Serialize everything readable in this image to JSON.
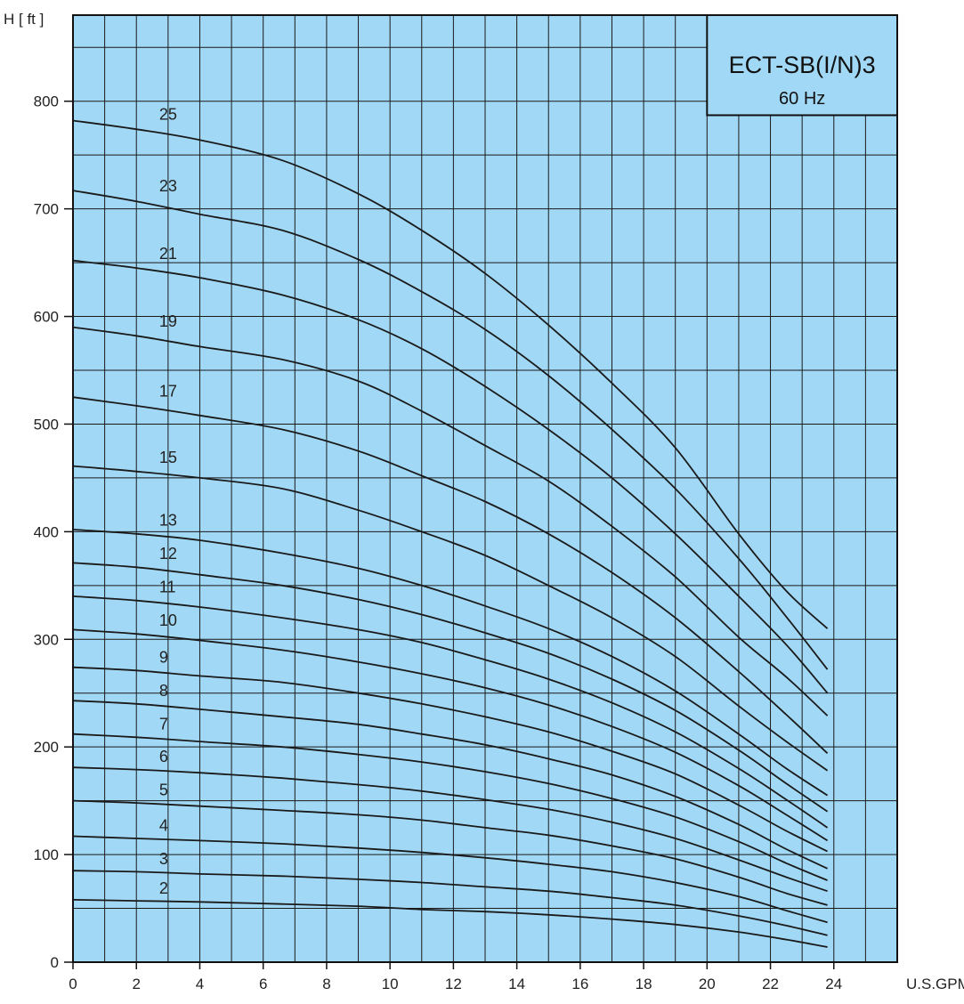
{
  "chart_data": {
    "type": "line",
    "title": "ECT-SB(I/N)3",
    "subtitle": "60 Hz",
    "xlabel": "U.S.GPM",
    "ylabel": "H [ ft ]",
    "xlim": [
      0,
      26
    ],
    "ylim": [
      0,
      880
    ],
    "xticks": [
      "0",
      "2",
      "4",
      "6",
      "8",
      "10",
      "12",
      "14",
      "16",
      "18",
      "20",
      "22",
      "24"
    ],
    "yticks": [
      "0",
      "100",
      "200",
      "300",
      "400",
      "500",
      "600",
      "700",
      "800"
    ],
    "grid": true,
    "colors": {
      "plot_background": "#a1d8f5",
      "grid": "#1a1a1a",
      "curve": "#1a1a1a"
    },
    "x": [
      0,
      2,
      4,
      6.6,
      9,
      11,
      13,
      15,
      17,
      19,
      21,
      22.5,
      23.8
    ],
    "series": [
      {
        "name": "2",
        "values": [
          58,
          57,
          56,
          54,
          52,
          49,
          47,
          44,
          40,
          35,
          28,
          21,
          14
        ]
      },
      {
        "name": "3",
        "values": [
          85,
          84,
          82,
          80,
          77,
          74,
          70,
          66,
          60,
          53,
          43,
          34,
          25
        ]
      },
      {
        "name": "4",
        "values": [
          117,
          115,
          113,
          110,
          106,
          102,
          97,
          91,
          84,
          74,
          61,
          48,
          37
        ]
      },
      {
        "name": "5",
        "values": [
          150,
          148,
          145,
          141,
          137,
          132,
          125,
          118,
          108,
          96,
          79,
          64,
          53
        ]
      },
      {
        "name": "6",
        "values": [
          181,
          179,
          176,
          171,
          165,
          159,
          151,
          142,
          130,
          115,
          95,
          79,
          66
        ]
      },
      {
        "name": "7",
        "values": [
          212,
          209,
          205,
          200,
          193,
          186,
          177,
          166,
          152,
          135,
          112,
          92,
          76
        ]
      },
      {
        "name": "8",
        "values": [
          243,
          240,
          235,
          228,
          221,
          212,
          202,
          189,
          174,
          154,
          128,
          105,
          87
        ]
      },
      {
        "name": "9",
        "values": [
          274,
          271,
          266,
          260,
          250,
          240,
          228,
          214,
          196,
          175,
          146,
          122,
          103
        ]
      },
      {
        "name": "10",
        "values": [
          309,
          305,
          299,
          290,
          279,
          268,
          255,
          239,
          219,
          195,
          164,
          137,
          113
        ]
      },
      {
        "name": "11",
        "values": [
          340,
          336,
          330,
          320,
          309,
          297,
          281,
          263,
          241,
          214,
          180,
          151,
          125
        ]
      },
      {
        "name": "12",
        "values": [
          371,
          367,
          360,
          350,
          337,
          323,
          306,
          287,
          263,
          234,
          197,
          166,
          140
        ]
      },
      {
        "name": "13",
        "values": [
          402,
          398,
          392,
          380,
          366,
          350,
          331,
          310,
          284,
          252,
          212,
          180,
          155
        ]
      },
      {
        "name": "15",
        "values": [
          461,
          456,
          450,
          440,
          420,
          400,
          378,
          350,
          320,
          284,
          238,
          205,
          178
        ]
      },
      {
        "name": "17",
        "values": [
          525,
          517,
          508,
          495,
          475,
          452,
          428,
          398,
          362,
          320,
          270,
          230,
          194
        ]
      },
      {
        "name": "19",
        "values": [
          590,
          582,
          572,
          560,
          540,
          512,
          480,
          447,
          405,
          358,
          302,
          265,
          229
        ]
      },
      {
        "name": "21",
        "values": [
          652,
          645,
          636,
          620,
          597,
          570,
          535,
          495,
          450,
          398,
          340,
          295,
          250
        ]
      },
      {
        "name": "23",
        "values": [
          717,
          707,
          695,
          680,
          653,
          623,
          588,
          545,
          495,
          440,
          375,
          321,
          272
        ]
      },
      {
        "name": "25",
        "values": [
          782,
          774,
          764,
          745,
          714,
          680,
          640,
          592,
          538,
          478,
          398,
          345,
          310
        ]
      }
    ]
  }
}
